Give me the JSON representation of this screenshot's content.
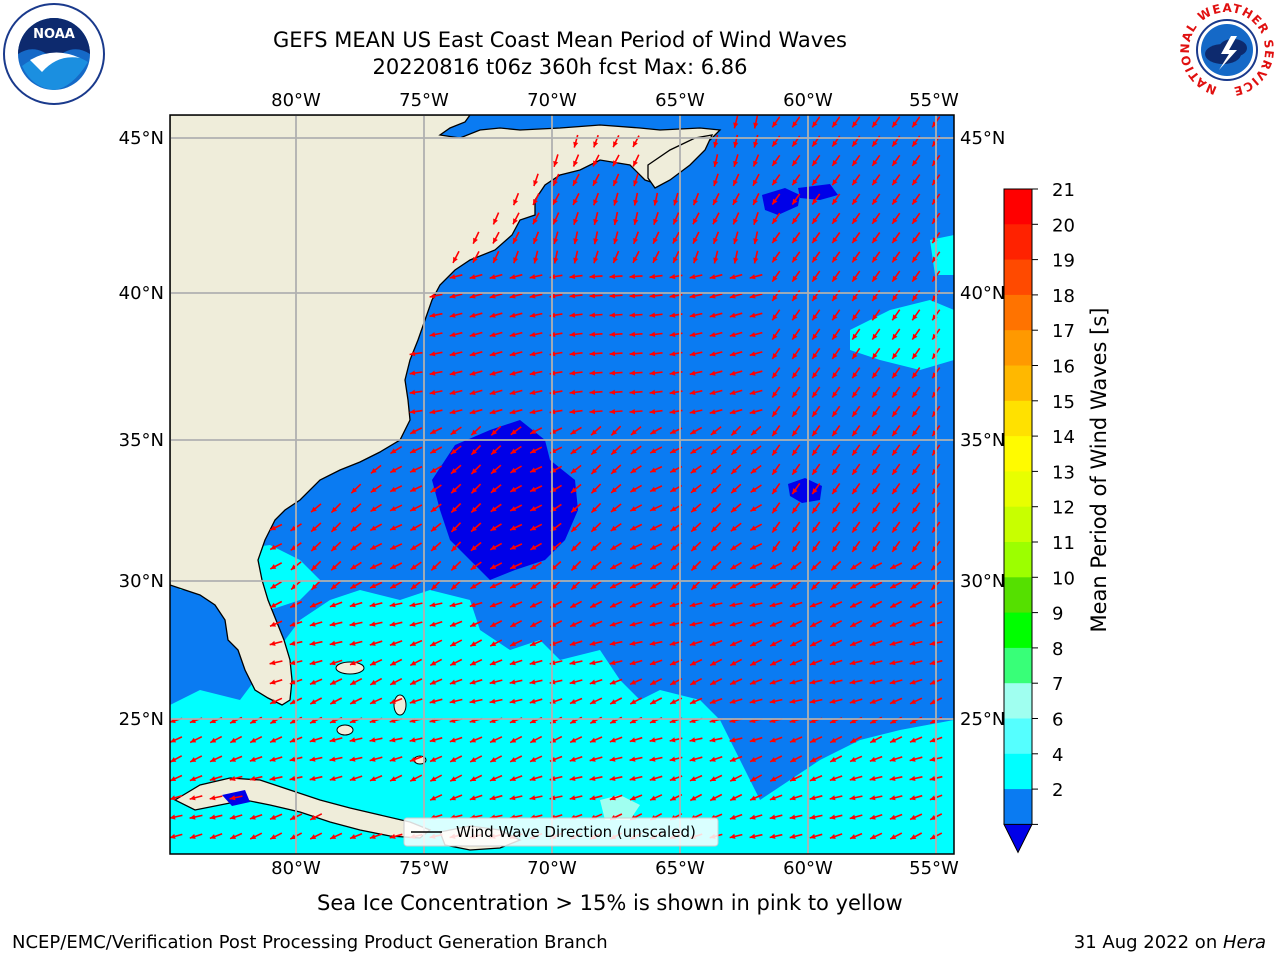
{
  "header": {
    "title": "GEFS MEAN US East Coast Mean Period of Wind Waves",
    "subtitle": "20220816 t06z 360h fcst   Max: 6.86"
  },
  "logos": {
    "left": "NOAA",
    "right_ring": "NATIONAL WEATHER SERVICE"
  },
  "map": {
    "lon_labels": [
      "80°W",
      "75°W",
      "70°W",
      "65°W",
      "60°W",
      "55°W"
    ],
    "lat_labels": [
      "45°N",
      "40°N",
      "35°N",
      "30°N",
      "25°N"
    ],
    "legend_label": "Wind Wave Direction (unscaled)",
    "land_color": "#efedda",
    "ocean_color": "#0a7bf2",
    "arrow_color": "#ff0000"
  },
  "colorbar": {
    "label": "Mean Period of Wind Waves [s]",
    "ticks": [
      "21",
      "20",
      "19",
      "18",
      "17",
      "16",
      "15",
      "14",
      "13",
      "12",
      "11",
      "10",
      "9",
      "8",
      "7",
      "6",
      "4",
      "2"
    ],
    "colors": [
      "#ff0000",
      "#ff2200",
      "#ff4a00",
      "#ff7300",
      "#ff9900",
      "#ffb800",
      "#ffe100",
      "#fffb00",
      "#e8ff00",
      "#c8ff00",
      "#9cff00",
      "#55e000",
      "#00ff00",
      "#38ff78",
      "#a0fff0",
      "#55ffff",
      "#00ffff",
      "#0a7bf2"
    ],
    "under_color": "#0000e8"
  },
  "footer": {
    "note": "Sea Ice Concentration > 15% is shown in pink to yellow",
    "branch": "NCEP/EMC/Verification Post Processing Product Generation Branch",
    "date_prefix": "31 Aug 2022 on ",
    "date_host": "Hera"
  }
}
